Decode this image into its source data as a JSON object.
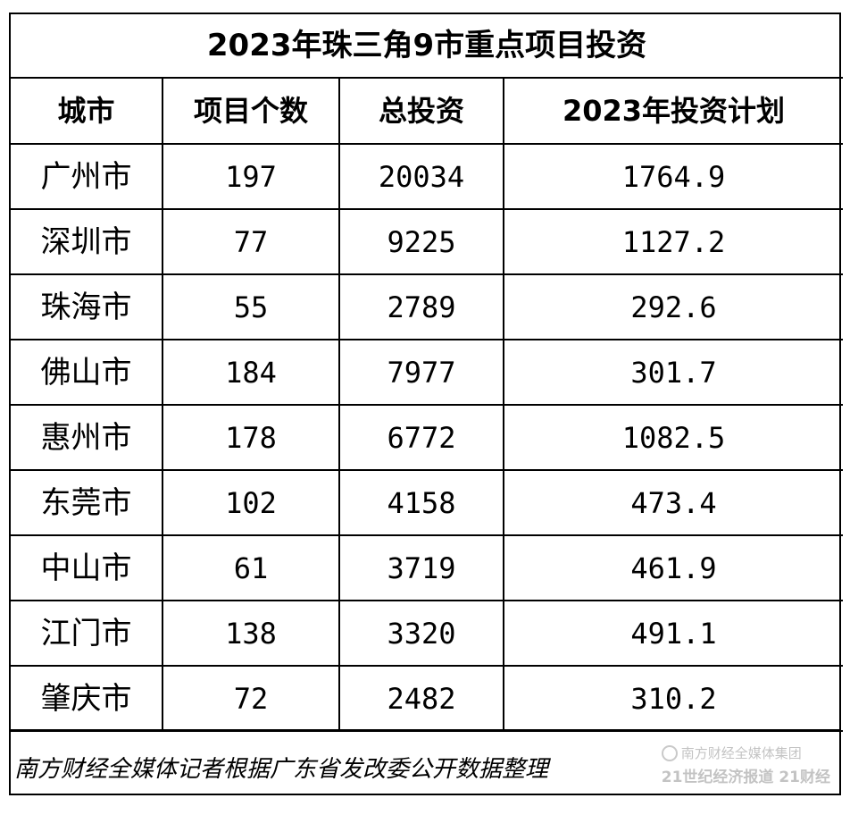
{
  "table": {
    "title": "2023年珠三角9市重点项目投资",
    "headers": [
      "城市",
      "项目个数",
      "总投资",
      "2023年投资计划"
    ],
    "rows": [
      {
        "city": "广州市",
        "projects": "197",
        "total": "20034",
        "plan": "1764.9"
      },
      {
        "city": "深圳市",
        "projects": "77",
        "total": "9225",
        "plan": "1127.2"
      },
      {
        "city": "珠海市",
        "projects": "55",
        "total": "2789",
        "plan": "292.6"
      },
      {
        "city": "佛山市",
        "projects": "184",
        "total": "7977",
        "plan": "301.7"
      },
      {
        "city": "惠州市",
        "projects": "178",
        "total": "6772",
        "plan": "1082.5"
      },
      {
        "city": "东莞市",
        "projects": "102",
        "total": "4158",
        "plan": "473.4"
      },
      {
        "city": "中山市",
        "projects": "61",
        "total": "3719",
        "plan": "461.9"
      },
      {
        "city": "江门市",
        "projects": "138",
        "total": "3320",
        "plan": "491.1"
      },
      {
        "city": "肇庆市",
        "projects": "72",
        "total": "2482",
        "plan": "310.2"
      }
    ]
  },
  "footer": {
    "note": "南方财经全媒体记者根据广东省发改委公开数据整理"
  },
  "watermark": {
    "line1": "南方财经全媒体集团",
    "line2": "21世纪经济报道 21财经",
    "logo_icon": "media-group-logo-icon"
  }
}
